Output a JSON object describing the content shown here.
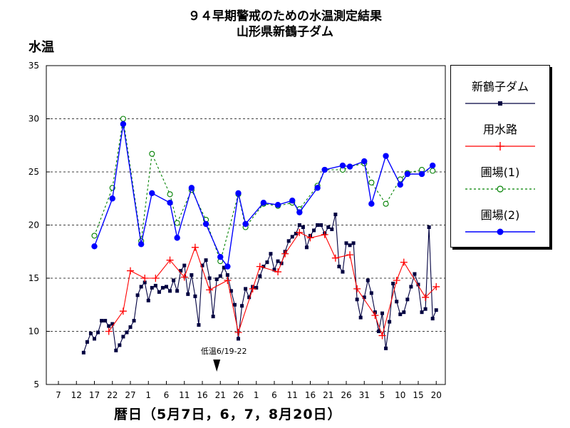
{
  "title_line1": "９４早期警戒のための水温測定結果",
  "title_line2": "山形県新鶴子ダム",
  "chart_data": {
    "type": "line",
    "ylabel": "水温",
    "xlabel": "暦日（5月7日，6，7，8月20日）",
    "ylim": [
      5,
      35
    ],
    "yticks": [
      5,
      10,
      15,
      20,
      25,
      30,
      35
    ],
    "grid": "horizontal dashed at 10, 15, 20, 25, 30",
    "legend_position": "right",
    "xlim": [
      "05-05",
      "08-20"
    ],
    "x_tick_labels": [
      "7",
      "12",
      "17",
      "22",
      "27",
      "1",
      "6",
      "11",
      "16",
      "21",
      "26",
      "1",
      "6",
      "11",
      "16",
      "21",
      "26",
      "31",
      "5",
      "10",
      "15",
      "20"
    ],
    "x_tick_dates": [
      "05-07",
      "05-12",
      "05-17",
      "05-22",
      "05-27",
      "06-01",
      "06-06",
      "06-11",
      "06-16",
      "06-21",
      "06-26",
      "07-01",
      "07-06",
      "07-11",
      "07-16",
      "07-21",
      "07-26",
      "07-31",
      "08-05",
      "08-10",
      "08-15",
      "08-20"
    ],
    "annotation": {
      "text": "低温6/19-22",
      "date": "06-20"
    },
    "series": [
      {
        "name": "新鶴子ダム",
        "color": "#000040",
        "marker": "square",
        "line": "solid",
        "points": [
          [
            "05-14",
            8.0
          ],
          [
            "05-15",
            9.0
          ],
          [
            "05-16",
            9.8
          ],
          [
            "05-17",
            9.3
          ],
          [
            "05-18",
            9.9
          ],
          [
            "05-19",
            11.0
          ],
          [
            "05-20",
            11.0
          ],
          [
            "05-21",
            10.5
          ],
          [
            "05-22",
            10.7
          ],
          [
            "05-23",
            8.2
          ],
          [
            "05-24",
            8.7
          ],
          [
            "05-25",
            9.5
          ],
          [
            "05-26",
            9.9
          ],
          [
            "05-27",
            10.4
          ],
          [
            "05-28",
            11.0
          ],
          [
            "05-29",
            13.4
          ],
          [
            "05-30",
            14.2
          ],
          [
            "05-31",
            14.6
          ],
          [
            "06-01",
            12.9
          ],
          [
            "06-02",
            14.1
          ],
          [
            "06-03",
            14.3
          ],
          [
            "06-04",
            13.7
          ],
          [
            "06-05",
            14.1
          ],
          [
            "06-06",
            14.2
          ],
          [
            "06-07",
            13.8
          ],
          [
            "06-08",
            14.8
          ],
          [
            "06-09",
            13.8
          ],
          [
            "06-10",
            15.7
          ],
          [
            "06-11",
            16.2
          ],
          [
            "06-12",
            13.5
          ],
          [
            "06-13",
            15.3
          ],
          [
            "06-14",
            13.3
          ],
          [
            "06-15",
            10.6
          ],
          [
            "06-16",
            16.2
          ],
          [
            "06-17",
            16.7
          ],
          [
            "06-18",
            15.0
          ],
          [
            "06-19",
            11.4
          ],
          [
            "06-20",
            14.9
          ],
          [
            "06-21",
            15.2
          ],
          [
            "06-22",
            16.0
          ],
          [
            "06-23",
            15.3
          ],
          [
            "06-24",
            13.8
          ],
          [
            "06-25",
            12.5
          ],
          [
            "06-26",
            9.3
          ],
          [
            "06-27",
            12.4
          ],
          [
            "06-28",
            14.0
          ],
          [
            "06-29",
            13.2
          ],
          [
            "06-30",
            14.2
          ],
          [
            "07-01",
            14.1
          ],
          [
            "07-02",
            15.2
          ],
          [
            "07-03",
            16.1
          ],
          [
            "07-04",
            16.5
          ],
          [
            "07-05",
            17.3
          ],
          [
            "07-06",
            15.8
          ],
          [
            "07-07",
            16.6
          ],
          [
            "07-08",
            16.4
          ],
          [
            "07-09",
            17.5
          ],
          [
            "07-10",
            18.5
          ],
          [
            "07-11",
            18.9
          ],
          [
            "07-12",
            19.2
          ],
          [
            "07-13",
            20.0
          ],
          [
            "07-14",
            19.8
          ],
          [
            "07-15",
            17.9
          ],
          [
            "07-16",
            19.0
          ],
          [
            "07-17",
            19.5
          ],
          [
            "07-18",
            20.0
          ],
          [
            "07-19",
            20.0
          ],
          [
            "07-20",
            19.2
          ],
          [
            "07-21",
            19.8
          ],
          [
            "07-22",
            19.6
          ],
          [
            "07-23",
            21.0
          ],
          [
            "07-24",
            16.1
          ],
          [
            "07-25",
            15.6
          ],
          [
            "07-26",
            18.3
          ],
          [
            "07-27",
            18.1
          ],
          [
            "07-28",
            18.3
          ],
          [
            "07-29",
            13.0
          ],
          [
            "07-30",
            11.3
          ],
          [
            "07-31",
            13.2
          ],
          [
            "08-01",
            14.8
          ],
          [
            "08-02",
            13.6
          ],
          [
            "08-03",
            11.8
          ],
          [
            "08-04",
            10.0
          ],
          [
            "08-05",
            11.7
          ],
          [
            "08-06",
            8.4
          ],
          [
            "08-07",
            10.9
          ],
          [
            "08-08",
            14.5
          ],
          [
            "08-09",
            12.8
          ],
          [
            "08-10",
            11.6
          ],
          [
            "08-11",
            11.8
          ],
          [
            "08-12",
            13.0
          ],
          [
            "08-13",
            14.2
          ],
          [
            "08-14",
            15.4
          ],
          [
            "08-15",
            14.4
          ],
          [
            "08-16",
            11.8
          ],
          [
            "08-17",
            12.1
          ],
          [
            "08-18",
            19.8
          ],
          [
            "08-19",
            11.2
          ],
          [
            "08-20",
            12.0
          ]
        ]
      },
      {
        "name": "用水路",
        "color": "#ff0000",
        "marker": "plus",
        "line": "solid",
        "points": [
          [
            "05-21",
            10.0
          ],
          [
            "05-25",
            11.9
          ],
          [
            "05-27",
            15.7
          ],
          [
            "05-31",
            15.0
          ],
          [
            "06-03",
            15.0
          ],
          [
            "06-07",
            16.7
          ],
          [
            "06-11",
            15.1
          ],
          [
            "06-14",
            17.9
          ],
          [
            "06-18",
            13.9
          ],
          [
            "06-23",
            14.8
          ],
          [
            "06-26",
            9.9
          ],
          [
            "06-30",
            14.0
          ],
          [
            "07-02",
            16.1
          ],
          [
            "07-07",
            15.6
          ],
          [
            "07-09",
            17.3
          ],
          [
            "07-13",
            19.3
          ],
          [
            "07-16",
            18.8
          ],
          [
            "07-20",
            19.1
          ],
          [
            "07-23",
            16.9
          ],
          [
            "07-27",
            17.2
          ],
          [
            "07-29",
            14.0
          ],
          [
            "08-03",
            11.5
          ],
          [
            "08-05",
            9.6
          ],
          [
            "08-09",
            14.8
          ],
          [
            "08-11",
            16.5
          ],
          [
            "08-17",
            13.2
          ],
          [
            "08-20",
            14.2
          ]
        ]
      },
      {
        "name": "圃場(1)",
        "color": "#008000",
        "marker": "open-circle",
        "line": "dashed",
        "points": [
          [
            "05-17",
            19.0
          ],
          [
            "05-22",
            23.5
          ],
          [
            "05-25",
            30.0
          ],
          [
            "05-30",
            18.5
          ],
          [
            "06-02",
            26.7
          ],
          [
            "06-07",
            22.9
          ],
          [
            "06-09",
            20.2
          ],
          [
            "06-13",
            23.3
          ],
          [
            "06-17",
            20.5
          ],
          [
            "06-21",
            16.6
          ],
          [
            "06-26",
            22.9
          ],
          [
            "06-28",
            19.8
          ],
          [
            "07-03",
            22.0
          ],
          [
            "07-07",
            21.8
          ],
          [
            "07-11",
            22.1
          ],
          [
            "07-13",
            21.5
          ],
          [
            "07-18",
            23.7
          ],
          [
            "07-20",
            25.2
          ],
          [
            "07-25",
            25.2
          ],
          [
            "07-27",
            25.5
          ],
          [
            "07-31",
            25.8
          ],
          [
            "08-02",
            24.0
          ],
          [
            "08-06",
            22.0
          ],
          [
            "08-10",
            24.3
          ],
          [
            "08-12",
            24.9
          ],
          [
            "08-16",
            25.2
          ],
          [
            "08-19",
            25.1
          ]
        ]
      },
      {
        "name": "圃場(2)",
        "color": "#0000ff",
        "marker": "filled-circle",
        "line": "solid",
        "points": [
          [
            "05-17",
            18.0
          ],
          [
            "05-22",
            22.5
          ],
          [
            "05-25",
            29.5
          ],
          [
            "05-30",
            18.2
          ],
          [
            "06-02",
            23.0
          ],
          [
            "06-07",
            22.1
          ],
          [
            "06-09",
            18.8
          ],
          [
            "06-13",
            23.5
          ],
          [
            "06-17",
            20.1
          ],
          [
            "06-21",
            17.0
          ],
          [
            "06-23",
            16.1
          ],
          [
            "06-26",
            23.0
          ],
          [
            "06-28",
            20.1
          ],
          [
            "07-03",
            22.1
          ],
          [
            "07-07",
            21.9
          ],
          [
            "07-11",
            22.3
          ],
          [
            "07-13",
            21.2
          ],
          [
            "07-18",
            23.5
          ],
          [
            "07-20",
            25.2
          ],
          [
            "07-25",
            25.6
          ],
          [
            "07-27",
            25.5
          ],
          [
            "07-31",
            26.0
          ],
          [
            "08-02",
            22.0
          ],
          [
            "08-06",
            26.5
          ],
          [
            "08-10",
            23.8
          ],
          [
            "08-12",
            24.8
          ],
          [
            "08-16",
            24.8
          ],
          [
            "08-19",
            25.6
          ]
        ]
      }
    ]
  }
}
